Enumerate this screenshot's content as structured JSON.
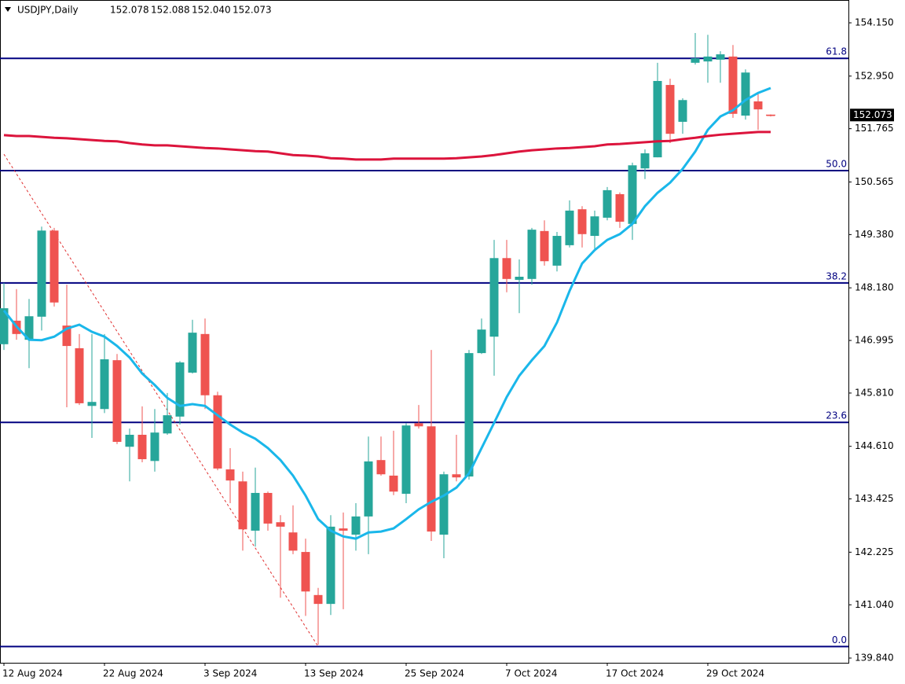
{
  "chart_data": {
    "type": "candlestick",
    "symbol": "USDJPY,Daily",
    "quote": [
      152.078,
      152.088,
      {
        "value": 152.04,
        "label": "152.040"
      },
      152.073
    ],
    "categories": [
      "12 Aug 2024",
      null,
      null,
      null,
      null,
      null,
      null,
      null,
      "22 Aug 2024",
      null,
      null,
      null,
      null,
      null,
      null,
      null,
      "3 Sep 2024",
      null,
      null,
      null,
      null,
      null,
      null,
      null,
      "13 Sep 2024",
      null,
      null,
      null,
      null,
      null,
      null,
      null,
      "25 Sep 2024",
      null,
      null,
      null,
      null,
      null,
      null,
      null,
      "7 Oct 2024",
      null,
      null,
      null,
      null,
      null,
      null,
      null,
      "17 Oct 2024",
      null,
      null,
      null,
      null,
      null,
      null,
      null,
      "29 Oct 2024",
      null,
      null,
      null,
      null,
      null
    ],
    "open": [
      146.91,
      147.44,
      147.01,
      147.53,
      149.47,
      147.33,
      146.82,
      145.52,
      145.45,
      146.55,
      144.6,
      144.87,
      144.28,
      144.9,
      145.28,
      146.27,
      147.14,
      145.76,
      144.09,
      143.82,
      142.71,
      143.56,
      142.9,
      142.67,
      142.23,
      141.26,
      141.06,
      142.76,
      142.62,
      143.03,
      144.3,
      143.95,
      143.54,
      145.13,
      145.06,
      142.62,
      143.98,
      143.93,
      146.71,
      147.08,
      148.85,
      148.36,
      148.38,
      149.46,
      148.68,
      149.14,
      149.95,
      149.35,
      149.76,
      150.29,
      149.62,
      150.87,
      151.12,
      152.75,
      151.92,
      153.25,
      153.28,
      153.32,
      153.39,
      152.06,
      152.38,
      152.078
    ],
    "high": [
      148.29,
      148.15,
      147.93,
      149.56,
      149.53,
      148.25,
      147.14,
      147.14,
      147.14,
      146.69,
      145.01,
      145.51,
      145.45,
      145.81,
      146.53,
      147.46,
      147.49,
      145.84,
      144.57,
      144.04,
      144.13,
      143.59,
      143.06,
      143.28,
      142.53,
      141.42,
      143.06,
      143.12,
      143.33,
      144.83,
      144.83,
      144.96,
      145.13,
      145.54,
      146.78,
      144.04,
      144.87,
      146.78,
      147.49,
      149.26,
      149.26,
      148.82,
      149.53,
      149.7,
      149.44,
      150.15,
      150.02,
      149.92,
      150.45,
      150.33,
      151.0,
      151.3,
      153.25,
      152.89,
      152.45,
      153.92,
      153.88,
      153.51,
      153.65,
      153.1,
      152.57,
      152.088
    ],
    "low": [
      146.78,
      147.01,
      146.37,
      147.22,
      147.76,
      145.49,
      145.54,
      144.8,
      145.36,
      144.66,
      143.82,
      144.25,
      144.04,
      144.87,
      145.1,
      146.25,
      145.45,
      144.07,
      143.33,
      142.26,
      142.35,
      142.71,
      141.2,
      142.18,
      140.79,
      140.14,
      140.81,
      140.94,
      142.26,
      142.18,
      143.95,
      143.51,
      143.33,
      145.01,
      142.48,
      142.09,
      143.82,
      143.86,
      146.69,
      146.2,
      148.08,
      147.61,
      148.25,
      148.68,
      148.55,
      149.09,
      149.09,
      149.03,
      149.7,
      149.53,
      149.26,
      150.63,
      151.12,
      151.44,
      151.65,
      153.21,
      152.8,
      152.8,
      152.01,
      151.97,
      151.74,
      152.04
    ],
    "close": [
      147.72,
      147.14,
      147.54,
      149.47,
      147.85,
      146.87,
      145.58,
      145.61,
      146.57,
      144.71,
      144.87,
      144.32,
      144.92,
      145.31,
      146.5,
      147.17,
      145.76,
      144.11,
      143.84,
      142.74,
      143.56,
      142.87,
      142.8,
      142.26,
      141.34,
      141.06,
      142.8,
      142.71,
      143.03,
      144.27,
      143.98,
      143.59,
      145.08,
      145.06,
      142.69,
      143.98,
      143.91,
      146.71,
      147.24,
      148.85,
      148.38,
      148.43,
      149.49,
      148.78,
      149.35,
      149.92,
      149.39,
      149.79,
      150.38,
      149.67,
      150.94,
      151.21,
      152.84,
      151.65,
      152.41,
      153.35,
      153.39,
      153.44,
      152.1,
      153.03,
      152.2,
      152.073
    ],
    "up_color": "#26a69a",
    "down_color": "#ef5350",
    "series": [
      {
        "color": "#1ab7ea",
        "values": [
          147.67,
          147.31,
          147.01,
          147.0,
          147.08,
          147.26,
          147.35,
          147.19,
          147.08,
          146.87,
          146.61,
          146.25,
          145.99,
          145.7,
          145.52,
          145.56,
          145.52,
          145.31,
          145.1,
          144.92,
          144.78,
          144.57,
          144.3,
          143.95,
          143.5,
          142.97,
          142.71,
          142.58,
          142.53,
          142.67,
          142.69,
          142.76,
          142.97,
          143.19,
          143.36,
          143.5,
          143.68,
          144.0,
          144.57,
          145.14,
          145.72,
          146.2,
          146.55,
          146.87,
          147.4,
          148.11,
          148.73,
          149.03,
          149.26,
          149.39,
          149.62,
          150.02,
          150.32,
          150.55,
          150.86,
          151.25,
          151.74,
          152.04,
          152.18,
          152.41,
          152.57,
          152.68
        ]
      },
      {
        "color": "#dc143c",
        "values": [
          151.62,
          151.6,
          151.6,
          151.58,
          151.56,
          151.55,
          151.53,
          151.51,
          151.49,
          151.48,
          151.44,
          151.41,
          151.39,
          151.39,
          151.37,
          151.35,
          151.33,
          151.32,
          151.3,
          151.28,
          151.26,
          151.25,
          151.21,
          151.17,
          151.16,
          151.14,
          151.1,
          151.09,
          151.07,
          151.07,
          151.07,
          151.09,
          151.09,
          151.09,
          151.09,
          151.09,
          151.1,
          151.12,
          151.14,
          151.17,
          151.21,
          151.25,
          151.28,
          151.3,
          151.32,
          151.33,
          151.35,
          151.37,
          151.41,
          151.42,
          151.44,
          151.46,
          151.48,
          151.49,
          151.53,
          151.56,
          151.6,
          151.63,
          151.65,
          151.67,
          151.69,
          151.69
        ]
      }
    ],
    "fib_levels": [
      {
        "name": "61.8",
        "price": 153.35
      },
      {
        "name": "50.0",
        "price": 150.82
      },
      {
        "name": "38.2",
        "price": 148.29
      },
      {
        "name": "23.6",
        "price": 145.15
      },
      {
        "name": "0.0",
        "price": 140.1
      }
    ],
    "fib_color": "#000080",
    "trendline": {
      "from": [
        0,
        151.19
      ],
      "to": [
        25,
        140.1
      ],
      "color": "#e03030"
    },
    "ylim": [
      139.734,
      154.664
    ],
    "yticks": [
      {
        "value": 154.15,
        "label": "154.150"
      },
      {
        "value": 152.95,
        "label": "152.950"
      },
      151.765,
      150.565,
      {
        "value": 149.38,
        "label": "149.380"
      },
      {
        "value": 148.18,
        "label": "148.180"
      },
      146.995,
      {
        "value": 145.81,
        "label": "145.810"
      },
      {
        "value": 144.61,
        "label": "144.610"
      },
      143.425,
      142.225,
      {
        "value": 141.04,
        "label": "141.040"
      },
      {
        "value": 139.84,
        "label": "139.840"
      }
    ]
  }
}
